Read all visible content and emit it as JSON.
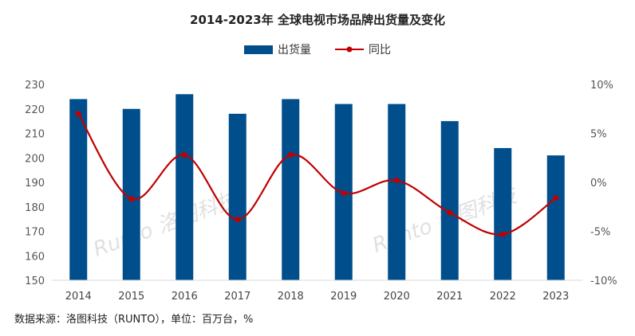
{
  "chart_data": {
    "type": "bar+line",
    "title": "2014-2023年 全球电视市场品牌出货量及变化",
    "categories": [
      "2014",
      "2015",
      "2016",
      "2017",
      "2018",
      "2019",
      "2020",
      "2021",
      "2022",
      "2023"
    ],
    "series": [
      {
        "name": "出货量",
        "type": "bar",
        "axis": "left",
        "color": "#004f8c",
        "values": [
          224,
          220,
          226,
          218,
          224,
          222,
          222,
          215,
          204,
          201
        ]
      },
      {
        "name": "同比",
        "type": "line",
        "axis": "right",
        "color": "#c00000",
        "values": [
          7.0,
          -1.7,
          2.8,
          -3.8,
          2.8,
          -1.1,
          0.2,
          -3.1,
          -5.3,
          -1.6
        ]
      }
    ],
    "left_axis": {
      "ylim": [
        150,
        230
      ],
      "ticks": [
        "150",
        "160",
        "170",
        "180",
        "190",
        "200",
        "210",
        "220",
        "230"
      ]
    },
    "right_axis": {
      "ylim": [
        -10,
        10
      ],
      "ticks": [
        "-10%",
        "-5%",
        "0%",
        "5%",
        "10%"
      ]
    },
    "legend_position": "top",
    "grid": false
  },
  "source": "数据来源：洛图科技（RUNTO），单位：百万台，%",
  "watermark": "Runto 洛图科技"
}
